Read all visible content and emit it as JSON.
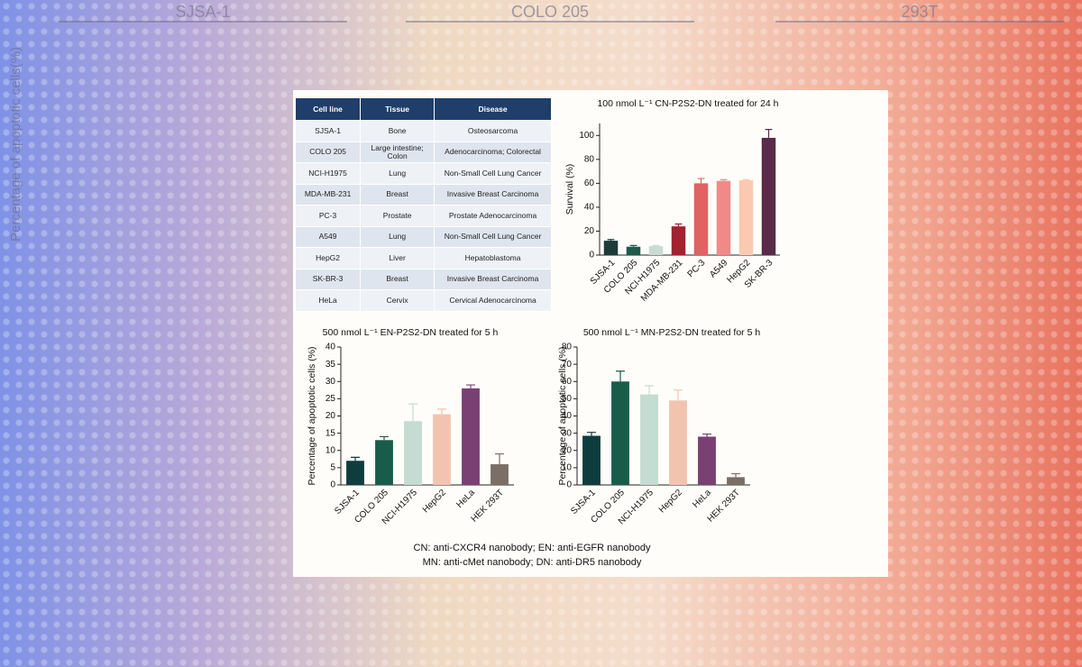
{
  "background": {
    "titles": [
      "SJSA-1",
      "COLO 205",
      "293T"
    ],
    "axis_label": "Percentage of apoptotic cells(%)"
  },
  "table": {
    "header": [
      "Cell line",
      "Tissue",
      "Disease"
    ],
    "rows": [
      [
        "SJSA-1",
        "Bone",
        "Osteosarcoma"
      ],
      [
        "COLO 205",
        "Large intestine; Colon",
        "Adenocarcinoma; Colorectal"
      ],
      [
        "NCI-H1975",
        "Lung",
        "Non-Small Cell Lung Cancer"
      ],
      [
        "MDA-MB-231",
        "Breast",
        "Invasive Breast Carcinoma"
      ],
      [
        "PC-3",
        "Prostate",
        "Prostate Adenocarcinoma"
      ],
      [
        "A549",
        "Lung",
        "Non-Small Cell Lung Cancer"
      ],
      [
        "HepG2",
        "Liver",
        "Hepatoblastoma"
      ],
      [
        "SK-BR-3",
        "Breast",
        "Invasive Breast Carcinoma"
      ],
      [
        "HeLa",
        "Cervix",
        "Cervical Adenocarcinoma"
      ]
    ]
  },
  "chart_data": [
    {
      "type": "bar",
      "title": "100 nmol L⁻¹ CN-P2S2-DN treated for 24 h",
      "y_label": "Survival (%)",
      "categories": [
        "SJSA-1",
        "COLO 205",
        "NCI-H1975",
        "MDA-MB-231",
        "PC-3",
        "A549",
        "HepG2",
        "SK-BR-3"
      ],
      "values": [
        12,
        7,
        7.5,
        24,
        60,
        62,
        62.5,
        98
      ],
      "errors": [
        1,
        1,
        0.5,
        2,
        4,
        1,
        0.5,
        7
      ],
      "colors": [
        "#1d3b3a",
        "#1f5a4c",
        "#c7dcd3",
        "#a3222d",
        "#e06262",
        "#ef8a88",
        "#fbc9b2",
        "#5a2a48"
      ],
      "ylim": [
        0,
        110
      ],
      "yticks": [
        0,
        20,
        40,
        60,
        80,
        100
      ]
    },
    {
      "type": "bar",
      "title": "500 nmol L⁻¹ EN-P2S2-DN treated for 5 h",
      "y_label": "Percentage of apoptotic cells (%)",
      "categories": [
        "SJSA-1",
        "COLO 205",
        "NCI-H1975",
        "HepG2",
        "HeLa",
        "HEK 293T"
      ],
      "values": [
        7,
        13,
        18.5,
        20.5,
        28,
        6
      ],
      "errors": [
        1,
        1,
        5,
        1.5,
        1,
        3
      ],
      "colors": [
        "#0f3d3e",
        "#1a5c4a",
        "#c4dcd2",
        "#f2c4b0",
        "#7a3f73",
        "#7a6e66"
      ],
      "ylim": [
        0,
        40
      ],
      "yticks": [
        0,
        5,
        10,
        15,
        20,
        25,
        30,
        35,
        40
      ]
    },
    {
      "type": "bar",
      "title": "500 nmol L⁻¹ MN-P2S2-DN treated for 5 h",
      "y_label": "Percentage of apoptotic cells (%)",
      "categories": [
        "SJSA-1",
        "COLO 205",
        "NCI-H1975",
        "HepG2",
        "HeLa",
        "HEK 293T"
      ],
      "values": [
        28.5,
        60,
        52.5,
        49,
        28,
        4.5
      ],
      "errors": [
        2,
        6,
        5,
        6,
        1.5,
        2
      ],
      "colors": [
        "#0f3d3e",
        "#1a5c4a",
        "#c4dcd2",
        "#f2c4b0",
        "#7a3f73",
        "#7a6e66"
      ],
      "ylim": [
        0,
        80
      ],
      "yticks": [
        0,
        10,
        20,
        30,
        40,
        50,
        60,
        70,
        80
      ]
    }
  ],
  "footnote": [
    "CN: anti-CXCR4 nanobody;  EN: anti-EGFR nanobody",
    "MN: anti-cMet nanobody;  DN: anti-DR5 nanobody"
  ]
}
